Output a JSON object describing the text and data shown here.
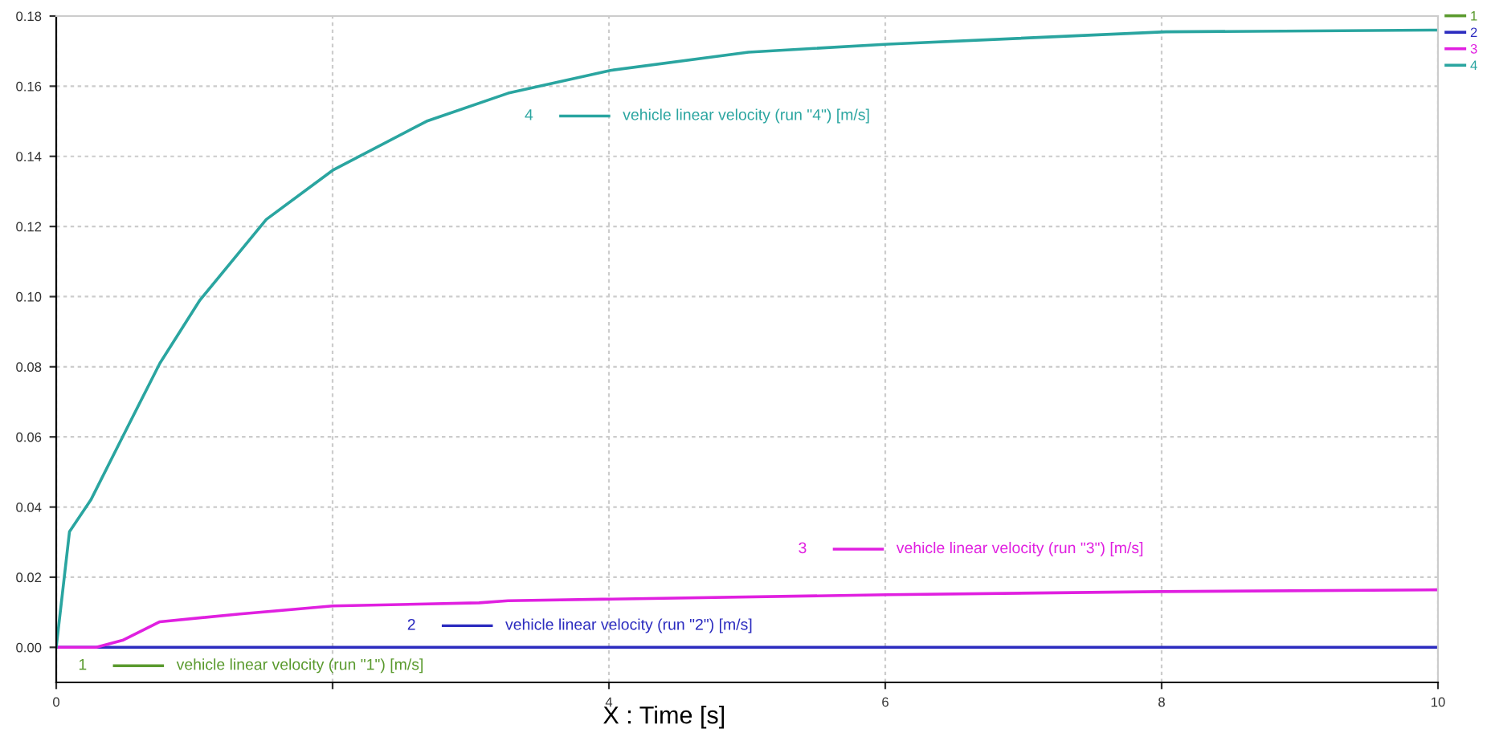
{
  "chart_data": {
    "type": "line",
    "xlabel": "X : Time [s]",
    "xlim": [
      0,
      10
    ],
    "xticks": [
      0,
      {
        "value": 2,
        "label": null
      },
      4,
      6,
      8,
      10
    ],
    "ylim": [
      -0.01,
      0.18
    ],
    "yticks": [
      {
        "value": 0,
        "label": "0.00"
      },
      {
        "value": 0.02,
        "label": "0.02"
      },
      {
        "value": 0.04,
        "label": "0.04"
      },
      {
        "value": 0.06,
        "label": "0.06"
      },
      {
        "value": 0.08,
        "label": "0.08"
      },
      {
        "value": 0.1,
        "label": "0.10"
      },
      {
        "value": 0.12,
        "label": "0.12"
      },
      {
        "value": 0.14,
        "label": "0.14"
      },
      {
        "value": 0.16,
        "label": "0.16"
      },
      {
        "value": 0.18,
        "label": "0.18"
      }
    ],
    "grid": true,
    "legend": "right",
    "line_style": "solid",
    "marker": "none",
    "series": [
      {
        "name": "1",
        "color": "#5a9a2e"
      },
      {
        "name": "2",
        "color": "#2b2bbf",
        "x": [
          0,
          10
        ],
        "values": [
          0,
          0
        ]
      },
      {
        "name": "3",
        "color": "#e020e0",
        "x": [
          0,
          0.29,
          0.48,
          0.75,
          1.33,
          2.0,
          3.06,
          3.27,
          6.02,
          7.99,
          9.99
        ],
        "values": [
          0,
          0,
          0.002,
          0.0073,
          0.0095,
          0.0118,
          0.0127,
          0.0133,
          0.015,
          0.0159,
          0.0164
        ]
      },
      {
        "name": "4",
        "color": "#2aa5a0",
        "x": [
          0,
          0.096,
          0.25,
          0.48,
          0.75,
          1.04,
          1.52,
          2.0,
          2.68,
          3.27,
          4.01,
          5.01,
          6.02,
          8.03,
          9.99
        ],
        "values": [
          0,
          0.033,
          0.042,
          0.06,
          0.081,
          0.099,
          0.122,
          0.136,
          0.15,
          0.158,
          0.1645,
          0.1697,
          0.172,
          0.1755,
          0.176
        ]
      }
    ],
    "annotations": [
      "vehicle linear velocity (run \"1\") [m/s]",
      "vehicle linear velocity (run \"2\") [m/s]",
      "vehicle linear velocity (run \"3\") [m/s]",
      "vehicle linear velocity (run \"4\") [m/s]"
    ]
  }
}
